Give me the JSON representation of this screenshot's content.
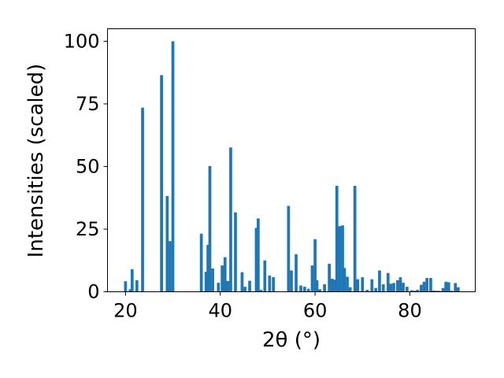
{
  "chart_data": {
    "type": "bar",
    "title": "",
    "xlabel": "2θ (°)",
    "ylabel": "Intensities (scaled)",
    "xlim": [
      16.2,
      93.8
    ],
    "ylim": [
      0,
      105
    ],
    "xticks": [
      20,
      40,
      60,
      80
    ],
    "yticks": [
      0,
      25,
      50,
      75,
      100
    ],
    "grid": false,
    "legend": "none",
    "bar_color": "#1f77b4",
    "bar_width": 0.62,
    "x": [
      20.0,
      21.0,
      21.4,
      22.4,
      23.6,
      27.6,
      28.8,
      29.4,
      30.0,
      36.0,
      37.0,
      37.4,
      37.8,
      38.4,
      39.6,
      40.4,
      41.0,
      41.6,
      42.2,
      43.2,
      44.6,
      45.2,
      46.2,
      47.6,
      48.0,
      48.6,
      49.4,
      50.4,
      51.2,
      54.4,
      55.0,
      56.0,
      57.0,
      57.8,
      58.6,
      59.4,
      60.0,
      60.4,
      61.0,
      62.0,
      63.0,
      63.6,
      64.0,
      64.6,
      65.2,
      65.8,
      66.2,
      66.8,
      67.4,
      68.4,
      69.0,
      70.0,
      71.0,
      72.0,
      72.8,
      73.6,
      74.4,
      75.4,
      76.0,
      76.6,
      77.4,
      78.0,
      78.6,
      79.4,
      80.4,
      81.0,
      81.6,
      82.4,
      83.0,
      83.6,
      84.4,
      85.0,
      85.6,
      86.2,
      87.0,
      87.6,
      88.2,
      88.8,
      89.6,
      90.2
    ],
    "values": [
      4.2,
      1.0,
      9.0,
      4.6,
      73.5,
      86.5,
      38.2,
      20.2,
      100.0,
      23.2,
      8.0,
      18.7,
      50.2,
      9.3,
      3.6,
      10.5,
      13.8,
      4.3,
      57.6,
      31.7,
      7.8,
      2.0,
      4.4,
      25.5,
      29.3,
      0.8,
      12.5,
      6.5,
      5.8,
      34.3,
      8.5,
      15.0,
      2.5,
      2.0,
      1.2,
      10.5,
      21.0,
      4.6,
      1.0,
      3.0,
      11.2,
      5.2,
      4.8,
      42.3,
      26.2,
      26.5,
      9.5,
      6.0,
      1.8,
      42.3,
      5.0,
      5.8,
      0.8,
      5.0,
      1.5,
      8.5,
      3.0,
      7.5,
      3.2,
      3.5,
      4.6,
      5.8,
      3.6,
      2.0,
      0.6,
      0.4,
      0.8,
      2.8,
      4.0,
      5.5,
      5.5,
      0.5,
      0.4,
      0.4,
      1.5,
      4.0,
      3.8,
      0.4,
      3.5,
      1.8
    ]
  }
}
